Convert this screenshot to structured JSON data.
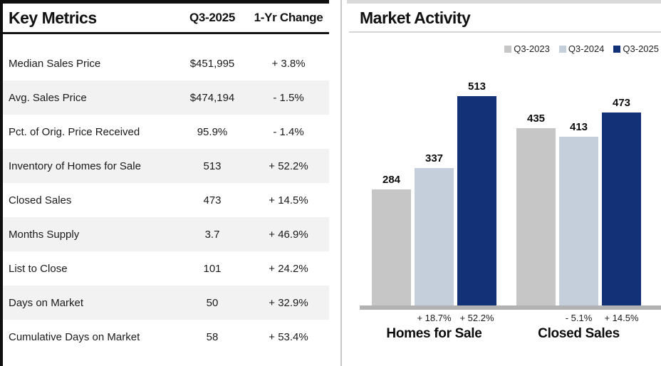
{
  "key_metrics": {
    "title": "Key Metrics",
    "period_column": "Q3-2025",
    "change_column": "1-Yr Change",
    "rows": [
      {
        "metric": "Median Sales Price",
        "value": "$451,995",
        "change": "+ 3.8%"
      },
      {
        "metric": "Avg. Sales Price",
        "value": "$474,194",
        "change": "- 1.5%"
      },
      {
        "metric": "Pct. of Orig. Price Received",
        "value": "95.9%",
        "change": "- 1.4%"
      },
      {
        "metric": "Inventory of Homes for Sale",
        "value": "513",
        "change": "+ 52.2%"
      },
      {
        "metric": "Closed Sales",
        "value": "473",
        "change": "+ 14.5%"
      },
      {
        "metric": "Months Supply",
        "value": "3.7",
        "change": "+ 46.9%"
      },
      {
        "metric": "List to Close",
        "value": "101",
        "change": "+ 24.2%"
      },
      {
        "metric": "Days on Market",
        "value": "50",
        "change": "+ 32.9%"
      },
      {
        "metric": "Cumulative Days on Market",
        "value": "58",
        "change": "+ 53.4%"
      }
    ]
  },
  "chart_data": {
    "type": "bar",
    "title": "Market Activity",
    "categories": [
      "Homes for Sale",
      "Closed Sales"
    ],
    "series": [
      {
        "name": "Q3-2023",
        "color": "#c6c6c6",
        "values": [
          284,
          435
        ],
        "changes": [
          "",
          ""
        ]
      },
      {
        "name": "Q3-2024",
        "color": "#c4cfdb",
        "values": [
          337,
          413
        ],
        "changes": [
          "+ 18.7%",
          "- 5.1%"
        ]
      },
      {
        "name": "Q3-2025",
        "color": "#123176",
        "values": [
          513,
          473
        ],
        "changes": [
          "+ 52.2%",
          "+ 14.5%"
        ]
      }
    ],
    "ylim": [
      0,
      560
    ],
    "grid": false,
    "legend_position": "top-right",
    "value_labels": true
  }
}
